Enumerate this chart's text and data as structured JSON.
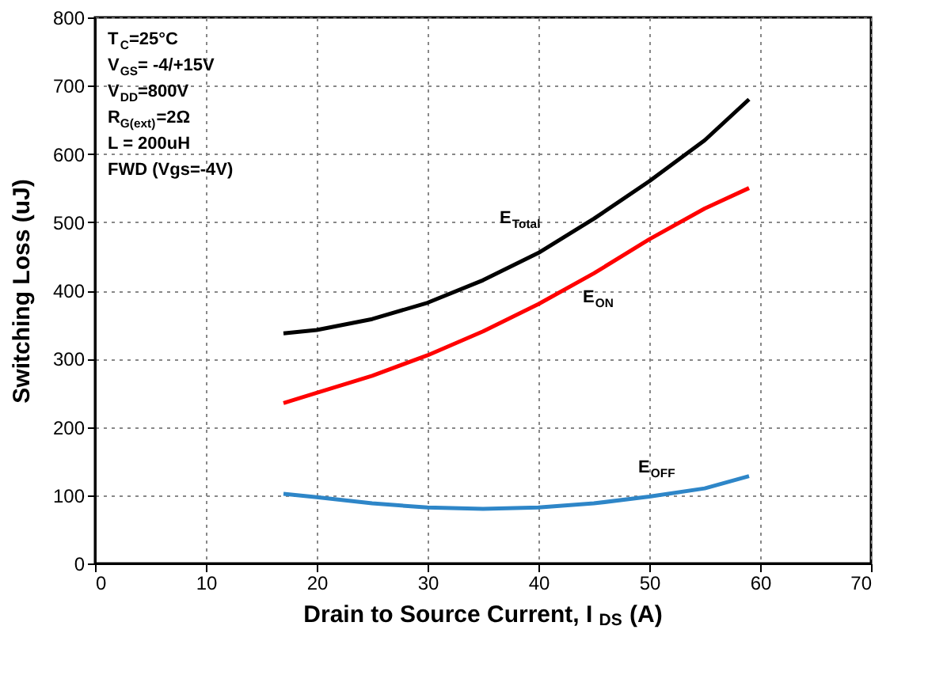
{
  "chart_data": {
    "type": "line",
    "xlabel": "Drain to Source Current, I$_{DS}$ (A)",
    "ylabel": "Switching Loss (uJ)",
    "x": [
      17,
      20,
      25,
      30,
      35,
      40,
      45,
      50,
      55,
      59
    ],
    "series": [
      {
        "name": "E$_{Total}$",
        "color": "#000000",
        "values": [
          337,
          342,
          358,
          382,
          415,
          455,
          505,
          560,
          620,
          680
        ]
      },
      {
        "name": "E$_{ON}$",
        "color": "#ff0000",
        "values": [
          235,
          250,
          275,
          305,
          340,
          380,
          425,
          475,
          520,
          550
        ]
      },
      {
        "name": "E$_{OFF}$",
        "color": "#2e86c8",
        "values": [
          102,
          97,
          88,
          82,
          80,
          82,
          88,
          98,
          110,
          128
        ]
      }
    ],
    "xlim": [
      0,
      70
    ],
    "xticks": [
      0,
      10,
      20,
      30,
      40,
      50,
      60,
      70
    ],
    "ylim": [
      0,
      800
    ],
    "yticks": [
      0,
      100,
      200,
      300,
      400,
      500,
      600,
      700,
      800
    ],
    "grid": true,
    "line_style": "solid",
    "marker": "none",
    "annotations": [
      "T$_{C}$=25°C",
      "V$_{GS}$= -4/+15V",
      "V$_{DD}$=800V",
      "R$_{G(ext)}$=2Ω",
      "L = 200uH",
      "FWD (Vgs=-4V)"
    ]
  }
}
